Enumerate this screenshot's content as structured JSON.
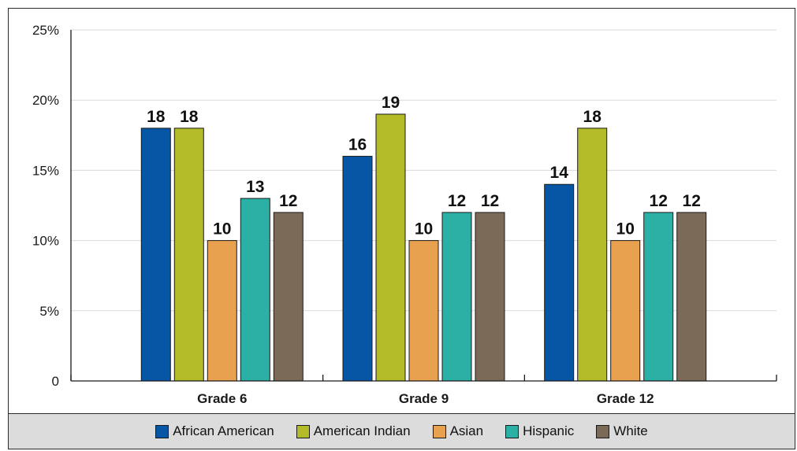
{
  "chart_data": {
    "type": "bar",
    "title": "",
    "xlabel": "",
    "ylabel": "",
    "categories": [
      "Grade 6",
      "Grade 9",
      "Grade 12"
    ],
    "ylim": [
      0,
      25
    ],
    "yticks": [
      0,
      5,
      10,
      15,
      20,
      25
    ],
    "ytick_labels": [
      "0",
      "5%",
      "10%",
      "15%",
      "20%",
      "25%"
    ],
    "grid": true,
    "legend_position": "bottom",
    "series": [
      {
        "name": "African American",
        "color": "#0656a5",
        "values": [
          18,
          16,
          14
        ]
      },
      {
        "name": "American Indian",
        "color": "#b3bb28",
        "values": [
          18,
          19,
          18
        ]
      },
      {
        "name": "Asian",
        "color": "#e8a14e",
        "values": [
          10,
          10,
          10
        ]
      },
      {
        "name": "Hispanic",
        "color": "#2cb0a5",
        "values": [
          13,
          12,
          12
        ]
      },
      {
        "name": "White",
        "color": "#7c6a58",
        "values": [
          12,
          12,
          12
        ]
      }
    ]
  }
}
